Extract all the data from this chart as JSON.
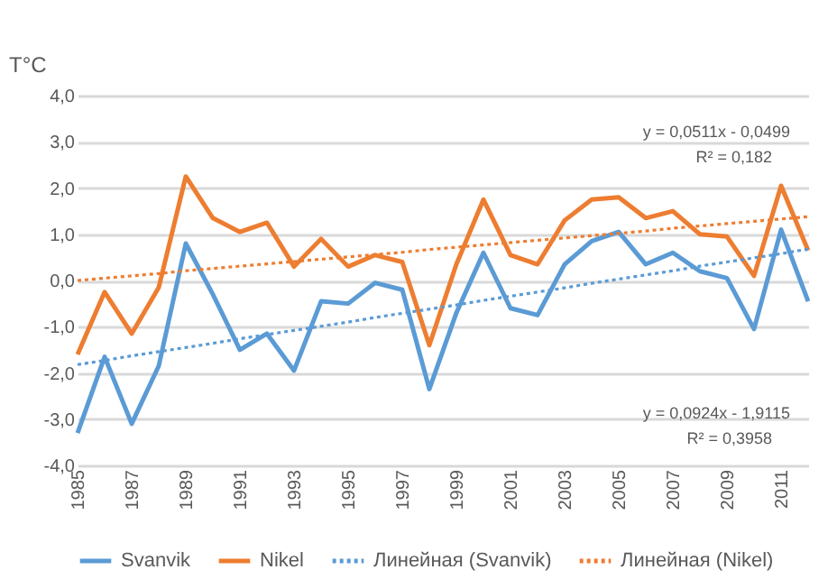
{
  "chart_data": {
    "type": "line",
    "ylabel": "T°C",
    "x": [
      1985,
      1986,
      1987,
      1988,
      1989,
      1990,
      1991,
      1992,
      1993,
      1994,
      1995,
      1996,
      1997,
      1998,
      1999,
      2000,
      2001,
      2002,
      2003,
      2004,
      2005,
      2006,
      2007,
      2008,
      2009,
      2010,
      2011,
      2012
    ],
    "series": [
      {
        "name": "Svanvik",
        "color": "#5b9bd5",
        "line_style": "solid",
        "values": [
          -3.3,
          -1.65,
          -3.1,
          -1.85,
          0.8,
          -0.3,
          -1.5,
          -1.15,
          -1.95,
          -0.45,
          -0.5,
          -0.05,
          -0.2,
          -2.35,
          -0.7,
          0.6,
          -0.6,
          -0.75,
          0.35,
          0.85,
          1.05,
          0.35,
          0.6,
          0.2,
          0.05,
          -1.05,
          1.1,
          -0.45
        ]
      },
      {
        "name": "Nikel",
        "color": "#ed7d31",
        "line_style": "solid",
        "values": [
          -1.6,
          -0.25,
          -1.15,
          -0.15,
          2.25,
          1.35,
          1.05,
          1.25,
          0.3,
          0.9,
          0.3,
          0.55,
          0.4,
          -1.4,
          0.35,
          1.75,
          0.55,
          0.35,
          1.3,
          1.75,
          1.8,
          1.35,
          1.5,
          1.0,
          0.95,
          0.1,
          2.05,
          0.65
        ]
      },
      {
        "name": "Линейная (Svanvik)",
        "type": "line",
        "color": "#5b9bd5",
        "line_style": "dotted",
        "values": [
          -1.82,
          -1.73,
          -1.63,
          -1.54,
          -1.45,
          -1.36,
          -1.26,
          -1.17,
          -1.08,
          -0.99,
          -0.9,
          -0.8,
          -0.71,
          -0.62,
          -0.53,
          -0.43,
          -0.34,
          -0.25,
          -0.16,
          -0.06,
          0.03,
          0.12,
          0.21,
          0.31,
          0.4,
          0.49,
          0.58,
          0.68
        ]
      },
      {
        "name": "Линейная (Nikel)",
        "type": "line",
        "color": "#ed7d31",
        "line_style": "dotted",
        "values": [
          0.0,
          0.05,
          0.1,
          0.15,
          0.21,
          0.26,
          0.31,
          0.36,
          0.41,
          0.46,
          0.51,
          0.56,
          0.61,
          0.67,
          0.72,
          0.77,
          0.82,
          0.87,
          0.92,
          0.97,
          1.02,
          1.07,
          1.13,
          1.18,
          1.23,
          1.28,
          1.33,
          1.38
        ]
      }
    ],
    "xlim": [
      1985,
      2012
    ],
    "xticks": [
      1985,
      1987,
      1989,
      1991,
      1993,
      1995,
      1997,
      1999,
      2001,
      2003,
      2005,
      2007,
      2009,
      2011
    ],
    "ylim": [
      -4,
      4
    ],
    "yticks": [
      {
        "value": -4,
        "label": "-4,0"
      },
      {
        "value": -3,
        "label": "-3,0"
      },
      {
        "value": -2,
        "label": "-2,0"
      },
      {
        "value": -1,
        "label": "-1,0"
      },
      {
        "value": 0,
        "label": "0,0"
      },
      {
        "value": 1,
        "label": "1,0"
      },
      {
        "value": 2,
        "label": "2,0"
      },
      {
        "value": 3,
        "label": "3,0"
      },
      {
        "value": 4,
        "label": "4,0"
      }
    ],
    "grid": "y",
    "legend": "bottom",
    "annotations": [
      "y = 0,0511x - 0,0499",
      "R² = 0,182",
      "y = 0,0924x - 1,9115",
      "R² = 0,3958"
    ]
  }
}
